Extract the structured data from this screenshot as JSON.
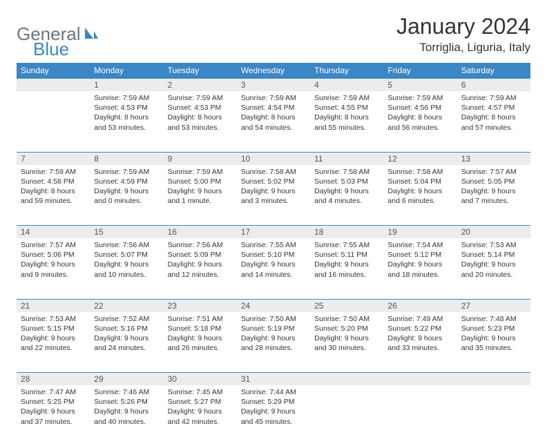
{
  "logo": {
    "general": "General",
    "blue": "Blue"
  },
  "title": "January 2024",
  "location": "Torriglia, Liguria, Italy",
  "colors": {
    "header_bg": "#3b86c4",
    "header_fg": "#ffffff",
    "daynum_bg": "#ececec",
    "row_border": "#3b86c4",
    "logo_gray": "#6b7680",
    "logo_blue": "#3b86c4",
    "page_bg": "#ffffff"
  },
  "weekdays": [
    "Sunday",
    "Monday",
    "Tuesday",
    "Wednesday",
    "Thursday",
    "Friday",
    "Saturday"
  ],
  "grid": {
    "start_weekday": 1,
    "days_in_month": 31
  },
  "days": {
    "1": {
      "sunrise": "7:59 AM",
      "sunset": "4:53 PM",
      "daylight": "8 hours and 53 minutes."
    },
    "2": {
      "sunrise": "7:59 AM",
      "sunset": "4:53 PM",
      "daylight": "8 hours and 53 minutes."
    },
    "3": {
      "sunrise": "7:59 AM",
      "sunset": "4:54 PM",
      "daylight": "8 hours and 54 minutes."
    },
    "4": {
      "sunrise": "7:59 AM",
      "sunset": "4:55 PM",
      "daylight": "8 hours and 55 minutes."
    },
    "5": {
      "sunrise": "7:59 AM",
      "sunset": "4:56 PM",
      "daylight": "8 hours and 56 minutes."
    },
    "6": {
      "sunrise": "7:59 AM",
      "sunset": "4:57 PM",
      "daylight": "8 hours and 57 minutes."
    },
    "7": {
      "sunrise": "7:59 AM",
      "sunset": "4:58 PM",
      "daylight": "8 hours and 59 minutes."
    },
    "8": {
      "sunrise": "7:59 AM",
      "sunset": "4:59 PM",
      "daylight": "9 hours and 0 minutes."
    },
    "9": {
      "sunrise": "7:59 AM",
      "sunset": "5:00 PM",
      "daylight": "9 hours and 1 minute."
    },
    "10": {
      "sunrise": "7:58 AM",
      "sunset": "5:02 PM",
      "daylight": "9 hours and 3 minutes."
    },
    "11": {
      "sunrise": "7:58 AM",
      "sunset": "5:03 PM",
      "daylight": "9 hours and 4 minutes."
    },
    "12": {
      "sunrise": "7:58 AM",
      "sunset": "5:04 PM",
      "daylight": "9 hours and 6 minutes."
    },
    "13": {
      "sunrise": "7:57 AM",
      "sunset": "5:05 PM",
      "daylight": "9 hours and 7 minutes."
    },
    "14": {
      "sunrise": "7:57 AM",
      "sunset": "5:06 PM",
      "daylight": "9 hours and 9 minutes."
    },
    "15": {
      "sunrise": "7:56 AM",
      "sunset": "5:07 PM",
      "daylight": "9 hours and 10 minutes."
    },
    "16": {
      "sunrise": "7:56 AM",
      "sunset": "5:09 PM",
      "daylight": "9 hours and 12 minutes."
    },
    "17": {
      "sunrise": "7:55 AM",
      "sunset": "5:10 PM",
      "daylight": "9 hours and 14 minutes."
    },
    "18": {
      "sunrise": "7:55 AM",
      "sunset": "5:11 PM",
      "daylight": "9 hours and 16 minutes."
    },
    "19": {
      "sunrise": "7:54 AM",
      "sunset": "5:12 PM",
      "daylight": "9 hours and 18 minutes."
    },
    "20": {
      "sunrise": "7:53 AM",
      "sunset": "5:14 PM",
      "daylight": "9 hours and 20 minutes."
    },
    "21": {
      "sunrise": "7:53 AM",
      "sunset": "5:15 PM",
      "daylight": "9 hours and 22 minutes."
    },
    "22": {
      "sunrise": "7:52 AM",
      "sunset": "5:16 PM",
      "daylight": "9 hours and 24 minutes."
    },
    "23": {
      "sunrise": "7:51 AM",
      "sunset": "5:18 PM",
      "daylight": "9 hours and 26 minutes."
    },
    "24": {
      "sunrise": "7:50 AM",
      "sunset": "5:19 PM",
      "daylight": "9 hours and 28 minutes."
    },
    "25": {
      "sunrise": "7:50 AM",
      "sunset": "5:20 PM",
      "daylight": "9 hours and 30 minutes."
    },
    "26": {
      "sunrise": "7:49 AM",
      "sunset": "5:22 PM",
      "daylight": "9 hours and 33 minutes."
    },
    "27": {
      "sunrise": "7:48 AM",
      "sunset": "5:23 PM",
      "daylight": "9 hours and 35 minutes."
    },
    "28": {
      "sunrise": "7:47 AM",
      "sunset": "5:25 PM",
      "daylight": "9 hours and 37 minutes."
    },
    "29": {
      "sunrise": "7:46 AM",
      "sunset": "5:26 PM",
      "daylight": "9 hours and 40 minutes."
    },
    "30": {
      "sunrise": "7:45 AM",
      "sunset": "5:27 PM",
      "daylight": "9 hours and 42 minutes."
    },
    "31": {
      "sunrise": "7:44 AM",
      "sunset": "5:29 PM",
      "daylight": "9 hours and 45 minutes."
    }
  },
  "labels": {
    "sunrise_prefix": "Sunrise: ",
    "sunset_prefix": "Sunset: ",
    "daylight_prefix": "Daylight: "
  }
}
